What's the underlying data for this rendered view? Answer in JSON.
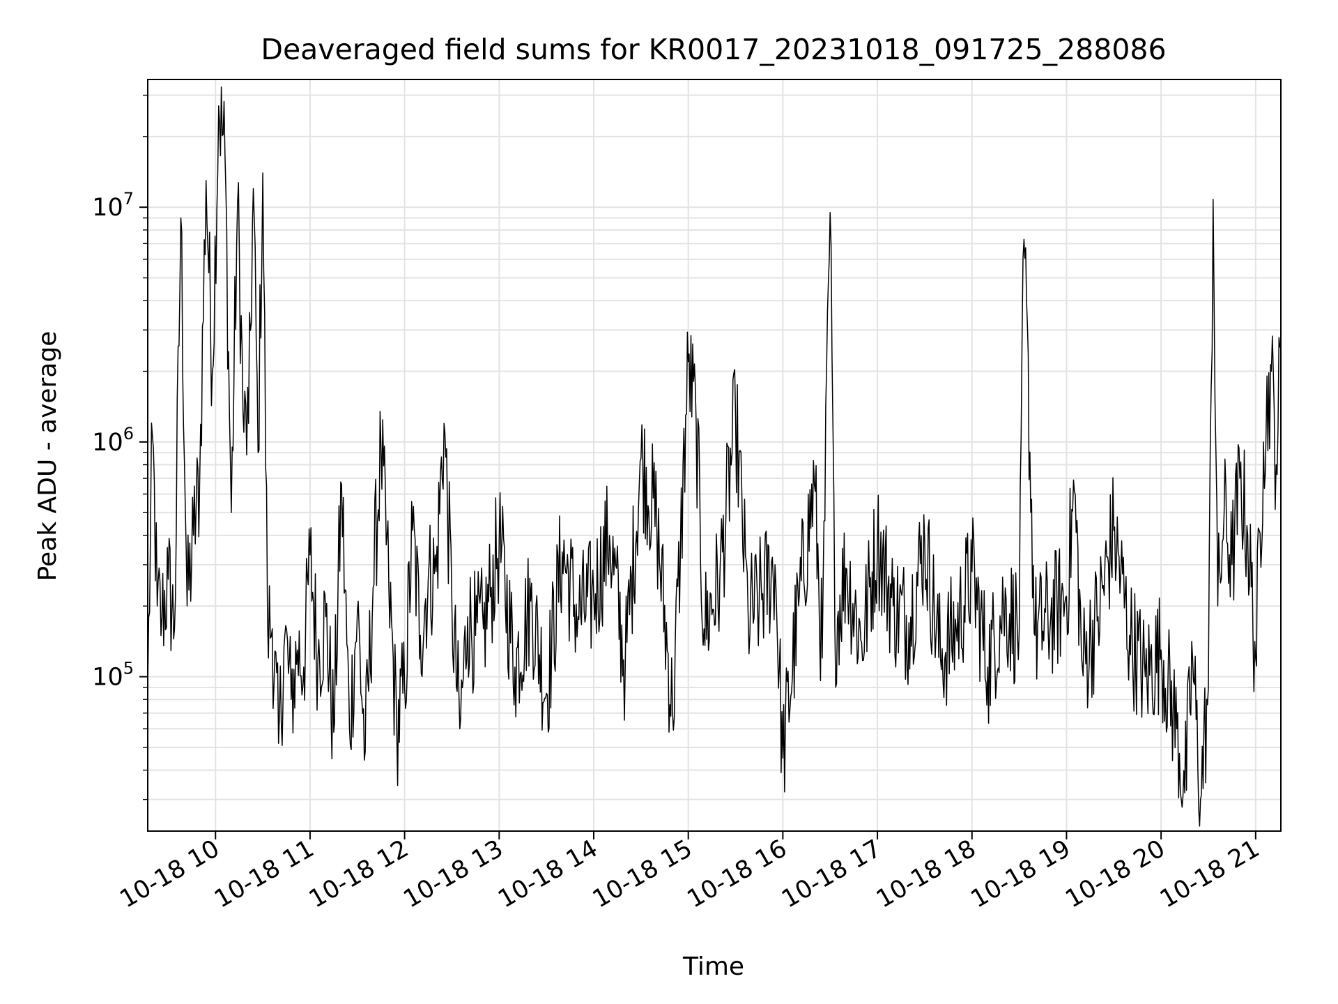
{
  "chart_data": {
    "type": "line",
    "title": "Deaveraged field sums for KR0017_20231018_091725_288086",
    "xlabel": "Time",
    "ylabel": "Peak ADU - average",
    "y_scale": "log",
    "x_range": [
      "10-18 09:17",
      "10-18 21:16"
    ],
    "ylim": [
      22000,
      35000000
    ],
    "grid": true,
    "line_color": "#000000",
    "x_ticks": [
      "10-18 10",
      "10-18 11",
      "10-18 12",
      "10-18 13",
      "10-18 14",
      "10-18 15",
      "10-18 16",
      "10-18 17",
      "10-18 18",
      "10-18 19",
      "10-18 20",
      "10-18 21"
    ],
    "y_ticks": [
      {
        "base": "10",
        "exp": "5",
        "value": 100000
      },
      {
        "base": "10",
        "exp": "6",
        "value": 1000000
      },
      {
        "base": "10",
        "exp": "7",
        "value": 10000000
      }
    ],
    "series": [
      {
        "x": [
          "10-18 09:17",
          "10-18 09:20",
          "10-18 09:23",
          "10-18 09:26",
          "10-18 09:30",
          "10-18 09:34",
          "10-18 09:38",
          "10-18 09:42",
          "10-18 09:46",
          "10-18 09:50",
          "10-18 09:54",
          "10-18 09:58",
          "10-18 10:02",
          "10-18 10:06",
          "10-18 10:10",
          "10-18 10:14",
          "10-18 10:18",
          "10-18 10:21",
          "10-18 10:24",
          "10-18 10:27",
          "10-18 10:30",
          "10-18 10:33",
          "10-18 10:36",
          "10-18 10:40",
          "10-18 10:44",
          "10-18 10:48",
          "10-18 10:52",
          "10-18 10:56",
          "10-18 11:00",
          "10-18 11:05",
          "10-18 11:10",
          "10-18 11:15",
          "10-18 11:20",
          "10-18 11:25",
          "10-18 11:30",
          "10-18 11:35",
          "10-18 11:40",
          "10-18 11:45",
          "10-18 11:50",
          "10-18 11:55",
          "10-18 12:00",
          "10-18 12:05",
          "10-18 12:10",
          "10-18 12:15",
          "10-18 12:20",
          "10-18 12:25",
          "10-18 12:30",
          "10-18 12:35",
          "10-18 12:40",
          "10-18 12:45",
          "10-18 12:50",
          "10-18 12:55",
          "10-18 13:00",
          "10-18 13:10",
          "10-18 13:20",
          "10-18 13:30",
          "10-18 13:40",
          "10-18 13:50",
          "10-18 14:00",
          "10-18 14:10",
          "10-18 14:20",
          "10-18 14:30",
          "10-18 14:40",
          "10-18 14:50",
          "10-18 14:55",
          "10-18 15:00",
          "10-18 15:05",
          "10-18 15:10",
          "10-18 15:20",
          "10-18 15:30",
          "10-18 15:38",
          "10-18 15:45",
          "10-18 15:55",
          "10-18 16:00",
          "10-18 16:10",
          "10-18 16:20",
          "10-18 16:25",
          "10-18 16:30",
          "10-18 16:33",
          "10-18 16:40",
          "10-18 16:50",
          "10-18 17:00",
          "10-18 17:10",
          "10-18 17:20",
          "10-18 17:30",
          "10-18 17:40",
          "10-18 17:50",
          "10-18 18:00",
          "10-18 18:10",
          "10-18 18:20",
          "10-18 18:30",
          "10-18 18:33",
          "10-18 18:40",
          "10-18 18:50",
          "10-18 19:00",
          "10-18 19:05",
          "10-18 19:10",
          "10-18 19:20",
          "10-18 19:30",
          "10-18 19:40",
          "10-18 19:50",
          "10-18 20:00",
          "10-18 20:10",
          "10-18 20:15",
          "10-18 20:20",
          "10-18 20:25",
          "10-18 20:30",
          "10-18 20:33",
          "10-18 20:36",
          "10-18 20:40",
          "10-18 20:45",
          "10-18 20:50",
          "10-18 20:55",
          "10-18 21:00",
          "10-18 21:05",
          "10-18 21:10",
          "10-18 21:13",
          "10-18 21:16"
        ],
        "values": [
          90000,
          1050000,
          200000,
          180000,
          260000,
          160000,
          9000000,
          200000,
          400000,
          700000,
          13000000,
          2000000,
          27000000,
          17000000,
          500000,
          10500000,
          1100000,
          1200000,
          12000000,
          900000,
          14000000,
          170000,
          160000,
          52000,
          150000,
          80000,
          130000,
          110000,
          330000,
          120000,
          180000,
          58000,
          660000,
          60000,
          190000,
          48000,
          240000,
          950000,
          240000,
          60000,
          90000,
          420000,
          150000,
          260000,
          280000,
          1200000,
          200000,
          60000,
          180000,
          150000,
          160000,
          240000,
          380000,
          110000,
          210000,
          85000,
          340000,
          180000,
          220000,
          400000,
          110000,
          850000,
          450000,
          70000,
          350000,
          2200000,
          1200000,
          160000,
          260000,
          1300000,
          180000,
          210000,
          300000,
          45000,
          200000,
          660000,
          120000,
          9500000,
          160000,
          290000,
          140000,
          380000,
          200000,
          170000,
          380000,
          120000,
          160000,
          280000,
          110000,
          200000,
          160000,
          7300000,
          150000,
          180000,
          220000,
          620000,
          110000,
          180000,
          420000,
          150000,
          100000,
          130000,
          60000,
          32000,
          120000,
          30000,
          90000,
          10800000,
          200000,
          500000,
          300000,
          700000,
          400000,
          120000,
          1000000,
          2000000,
          800000,
          2500000
        ]
      }
    ]
  }
}
